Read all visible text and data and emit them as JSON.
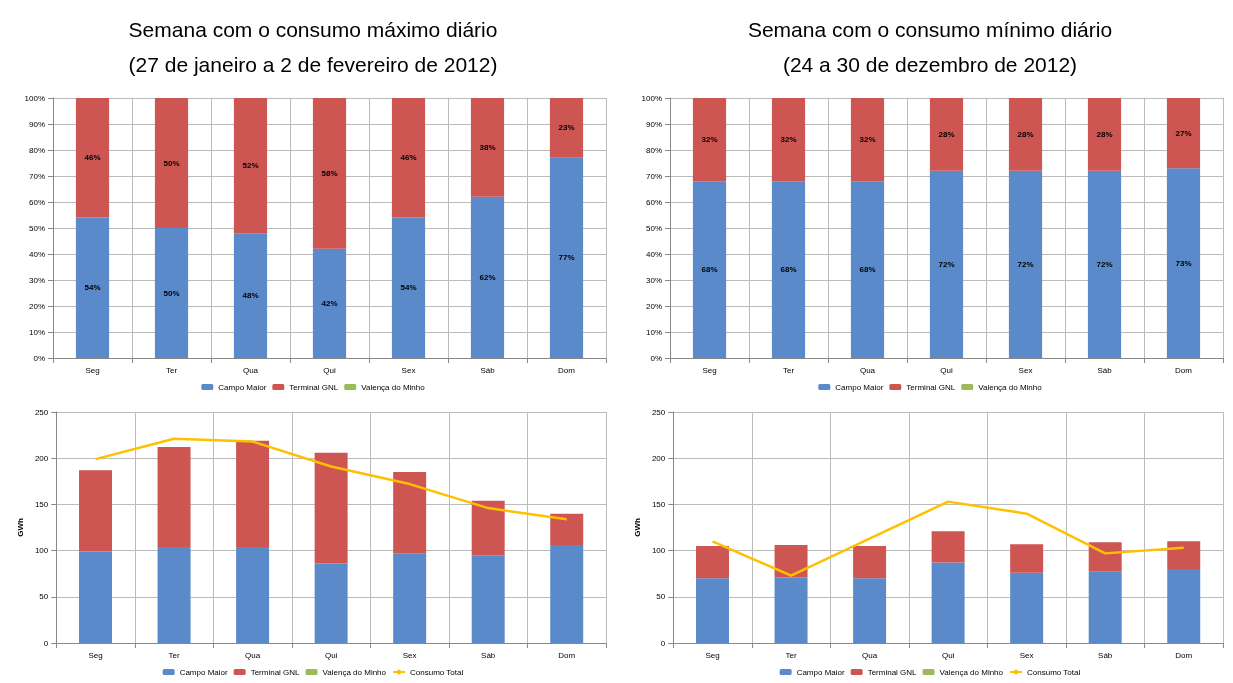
{
  "chart_data": [
    {
      "type": "bar",
      "title": "Semana com o consumo máximo diário",
      "subtitle": "(27 de janeiro a 2 de fevereiro de 2012)",
      "categories": [
        "Seg",
        "Ter",
        "Qua",
        "Qui",
        "Sex",
        "Sáb",
        "Dom"
      ],
      "stacked": true,
      "grid": true,
      "legend": "bottom",
      "ylim": [
        0,
        100
      ],
      "yticks": [
        {
          "value": 0,
          "label": "0%"
        },
        {
          "value": 10,
          "label": "10%"
        },
        {
          "value": 20,
          "label": "20%"
        },
        {
          "value": 30,
          "label": "30%"
        },
        {
          "value": 40,
          "label": "40%"
        },
        {
          "value": 50,
          "label": "50%"
        },
        {
          "value": 60,
          "label": "60%"
        },
        {
          "value": 70,
          "label": "70%"
        },
        {
          "value": 80,
          "label": "80%"
        },
        {
          "value": 90,
          "label": "90%"
        },
        {
          "value": 100,
          "label": "100%"
        }
      ],
      "series": [
        {
          "name": "Campo Maior",
          "color": "#5a8ac9",
          "values": [
            54,
            50,
            48,
            42,
            54,
            62,
            77
          ],
          "value_labels": [
            "54%",
            "50%",
            "48%",
            "42%",
            "54%",
            "62%",
            "77%"
          ]
        },
        {
          "name": "Terminal GNL",
          "color": "#cd5653",
          "values": [
            46,
            50,
            52,
            58,
            46,
            38,
            23
          ],
          "value_labels": [
            "46%",
            "50%",
            "52%",
            "58%",
            "46%",
            "38%",
            "23%"
          ]
        },
        {
          "name": "Valença do Minho",
          "color": "#9bbb59",
          "values": [
            0,
            0,
            0,
            0,
            0,
            0,
            0
          ]
        }
      ]
    },
    {
      "type": "bar",
      "title": "Semana com o consumo mínimo diário",
      "subtitle": "(24 a 30 de dezembro de 2012)",
      "categories": [
        "Seg",
        "Ter",
        "Qua",
        "Qui",
        "Sex",
        "Sáb",
        "Dom"
      ],
      "stacked": true,
      "grid": true,
      "legend": "bottom",
      "ylim": [
        0,
        100
      ],
      "yticks": [
        {
          "value": 0,
          "label": "0%"
        },
        {
          "value": 10,
          "label": "10%"
        },
        {
          "value": 20,
          "label": "20%"
        },
        {
          "value": 30,
          "label": "30%"
        },
        {
          "value": 40,
          "label": "40%"
        },
        {
          "value": 50,
          "label": "50%"
        },
        {
          "value": 60,
          "label": "60%"
        },
        {
          "value": 70,
          "label": "70%"
        },
        {
          "value": 80,
          "label": "80%"
        },
        {
          "value": 90,
          "label": "90%"
        },
        {
          "value": 100,
          "label": "100%"
        }
      ],
      "series": [
        {
          "name": "Campo Maior",
          "color": "#5a8ac9",
          "values": [
            68,
            68,
            68,
            72,
            72,
            72,
            73
          ],
          "value_labels": [
            "68%",
            "68%",
            "68%",
            "72%",
            "72%",
            "72%",
            "73%"
          ]
        },
        {
          "name": "Terminal GNL",
          "color": "#cd5653",
          "values": [
            32,
            32,
            32,
            28,
            28,
            28,
            27
          ],
          "value_labels": [
            "32%",
            "32%",
            "32%",
            "28%",
            "28%",
            "28%",
            "27%"
          ]
        },
        {
          "name": "Valença do Minho",
          "color": "#9bbb59",
          "values": [
            0,
            0,
            0,
            0,
            0,
            0,
            0
          ]
        }
      ]
    },
    {
      "type": "bar",
      "ylabel": "GWh",
      "categories": [
        "Seg",
        "Ter",
        "Qua",
        "Qui",
        "Sex",
        "Sáb",
        "Dom"
      ],
      "stacked": true,
      "grid": true,
      "legend": "bottom",
      "marker": "none",
      "ylim": [
        0,
        250
      ],
      "yticks": [
        0,
        50,
        100,
        150,
        200,
        250
      ],
      "series": [
        {
          "name": "Campo Maior",
          "color": "#5a8ac9",
          "values": [
            99,
            104,
            104,
            86,
            97,
            95,
            106
          ]
        },
        {
          "name": "Terminal GNL",
          "color": "#cd5653",
          "values": [
            88,
            108,
            115,
            120,
            88,
            59,
            34
          ]
        },
        {
          "name": "Valença do Minho",
          "color": "#9bbb59",
          "values": [
            0,
            0,
            0,
            0,
            0,
            0,
            0
          ]
        },
        {
          "name": "Consumo Total",
          "type": "line",
          "color": "#ffc000",
          "values": [
            199,
            221,
            218,
            191,
            172,
            146,
            134
          ]
        }
      ]
    },
    {
      "type": "bar",
      "ylabel": "GWh",
      "categories": [
        "Seg",
        "Ter",
        "Qua",
        "Qui",
        "Sex",
        "Sáb",
        "Dom"
      ],
      "stacked": true,
      "grid": true,
      "legend": "bottom",
      "marker": "none",
      "ylim": [
        0,
        250
      ],
      "yticks": [
        0,
        50,
        100,
        150,
        200,
        250
      ],
      "series": [
        {
          "name": "Campo Maior",
          "color": "#5a8ac9",
          "values": [
            70,
            71,
            70,
            87,
            76,
            77,
            80
          ]
        },
        {
          "name": "Terminal GNL",
          "color": "#cd5653",
          "values": [
            35,
            35,
            35,
            34,
            31,
            32,
            30
          ]
        },
        {
          "name": "Valença do Minho",
          "color": "#9bbb59",
          "values": [
            0,
            0,
            0,
            0,
            0,
            0,
            0
          ]
        },
        {
          "name": "Consumo Total",
          "type": "line",
          "color": "#ffc000",
          "values": [
            110,
            73,
            113,
            153,
            140,
            97,
            103
          ]
        }
      ]
    }
  ]
}
